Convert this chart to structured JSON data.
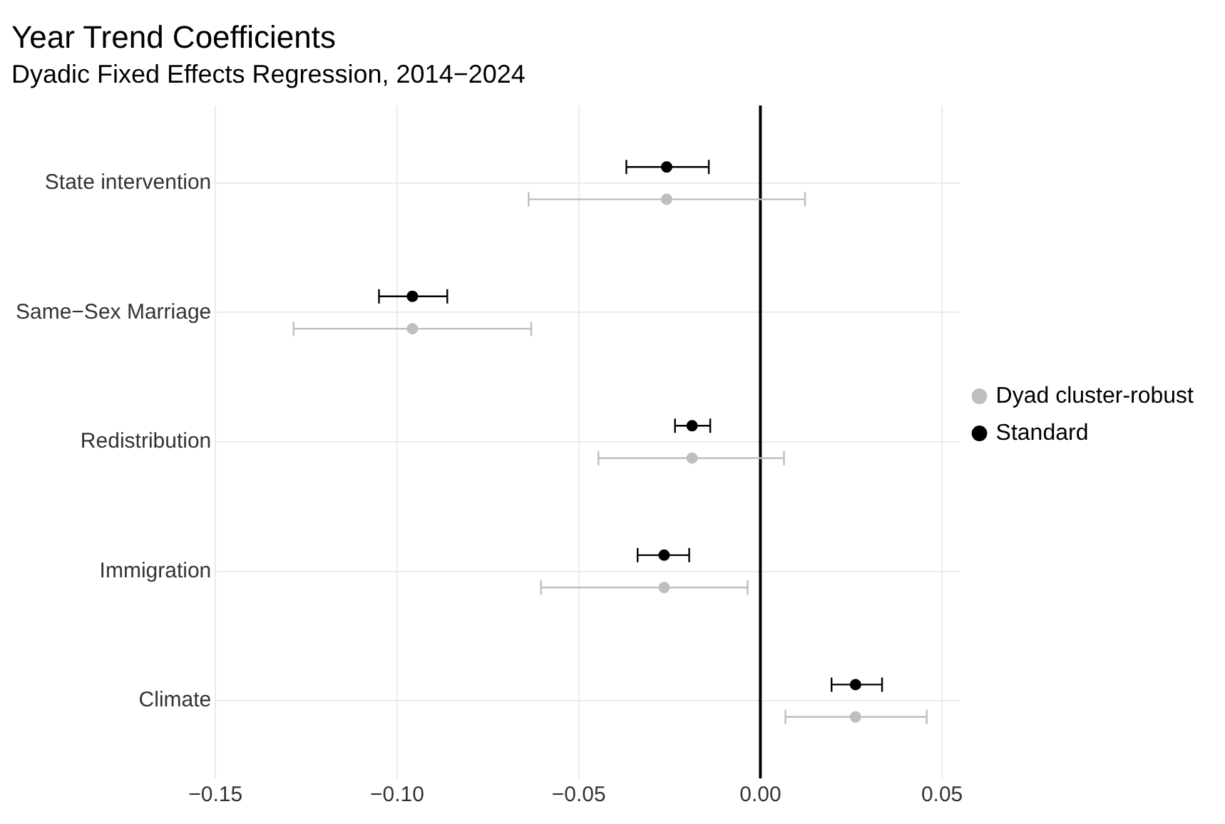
{
  "chart_data": {
    "type": "scatter",
    "title": "Year Trend Coefficients",
    "subtitle": "Dyadic Fixed Effects Regression, 2014−2024",
    "orientation": "horizontal",
    "categories": [
      "State intervention",
      "Same−Sex Marriage",
      "Redistribution",
      "Immigration",
      "Climate"
    ],
    "series": [
      {
        "name": "Dyad cluster-robust",
        "color": "#bebebe",
        "values": [
          -0.0258,
          -0.0958,
          -0.0188,
          -0.0265,
          0.0262
        ],
        "errors": [
          [
            -0.0638,
            0.0123
          ],
          [
            -0.1285,
            -0.0631
          ],
          [
            -0.0446,
            0.0065
          ],
          [
            -0.0604,
            -0.0035
          ],
          [
            0.0069,
            0.0458
          ]
        ]
      },
      {
        "name": "Standard",
        "color": "#000000",
        "values": [
          -0.0258,
          -0.0958,
          -0.0188,
          -0.0265,
          0.0262
        ],
        "errors": [
          [
            -0.0369,
            -0.0142
          ],
          [
            -0.105,
            -0.0862
          ],
          [
            -0.0235,
            -0.0138
          ],
          [
            -0.0338,
            -0.0196
          ],
          [
            0.0196,
            0.0335
          ]
        ]
      }
    ],
    "xlim": [
      -0.15,
      0.055
    ],
    "xticks": [
      {
        "value": -0.15,
        "label": "−0.15"
      },
      {
        "value": -0.1,
        "label": "−0.10"
      },
      {
        "value": -0.05,
        "label": "−0.05"
      },
      {
        "value": 0,
        "label": "0.00"
      },
      {
        "value": 0.05,
        "label": "0.05"
      }
    ],
    "ref_lines": [
      {
        "axis": "x",
        "value": 0,
        "color": "#000000"
      }
    ],
    "grid": true,
    "legend": "right",
    "marker": "circle"
  }
}
